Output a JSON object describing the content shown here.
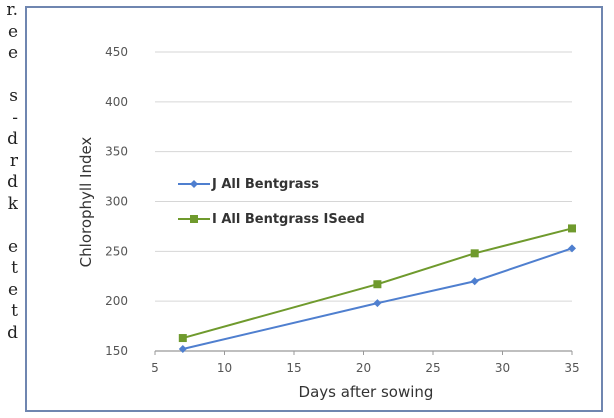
{
  "left_text_lines": [
    "r.",
    "e",
    "e",
    "",
    "s",
    "-",
    "d",
    "r",
    "d",
    "k",
    "",
    "e",
    "t",
    "e",
    "t",
    "d"
  ],
  "chart_data": {
    "type": "line",
    "x": [
      7,
      21,
      28,
      35
    ],
    "xlim": [
      5,
      35
    ],
    "ylim": [
      150,
      450
    ],
    "xticks": [
      5,
      10,
      15,
      20,
      25,
      30,
      35
    ],
    "yticks": [
      150,
      200,
      250,
      300,
      350,
      400,
      450
    ],
    "xlabel": "Days after sowing",
    "ylabel": "Chlorophyll Index",
    "grid": true,
    "legend_position": "left-middle",
    "series": [
      {
        "name": "J All Bentgrass",
        "values": [
          152,
          198,
          220,
          253
        ],
        "color": "#4f7fcf",
        "marker": "diamond"
      },
      {
        "name": "I All Bentgrass ISeed",
        "values": [
          163,
          217,
          248,
          273
        ],
        "color": "#6f9a2d",
        "marker": "square"
      }
    ]
  }
}
